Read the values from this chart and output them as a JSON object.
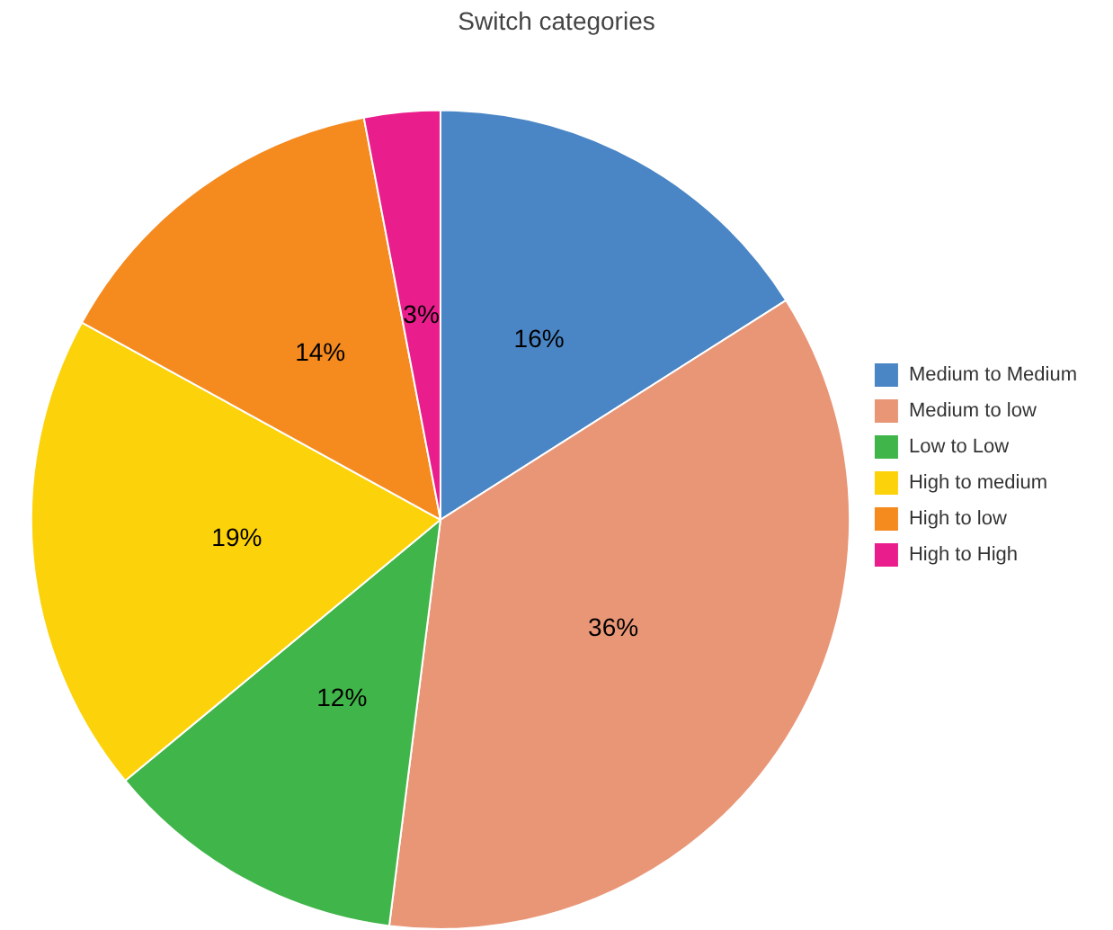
{
  "chart_data": {
    "type": "pie",
    "title": "Switch categories",
    "categories": [
      "Medium to Medium",
      "Medium to low",
      "Low to Low",
      "High to medium",
      "High to low",
      "High to High"
    ],
    "values": [
      16,
      36,
      12,
      19,
      14,
      3
    ],
    "colors": [
      "#4a86c5",
      "#e99677",
      "#40b54a",
      "#fcd20b",
      "#f58a1f",
      "#e91e8c"
    ],
    "value_labels": [
      "16%",
      "36%",
      "12%",
      "19%",
      "14%",
      "3%"
    ],
    "legend": "right"
  }
}
